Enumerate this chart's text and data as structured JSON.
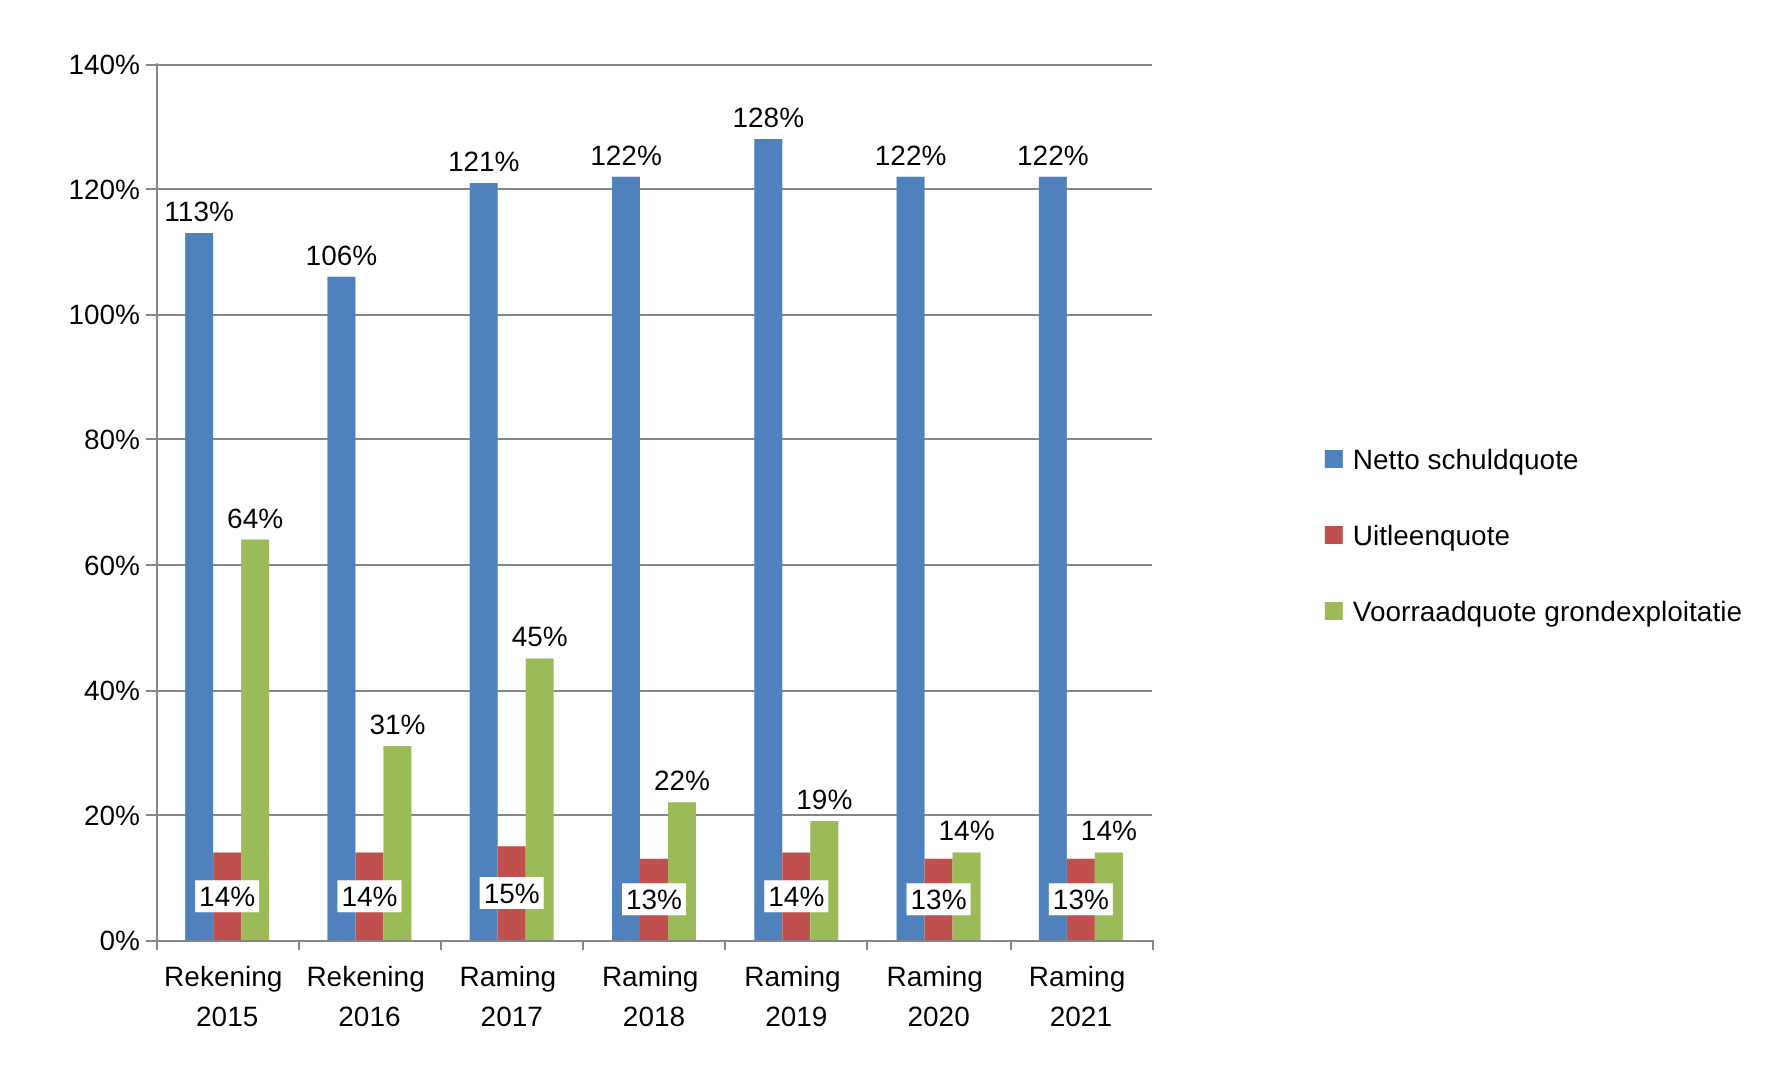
{
  "chart_data": {
    "type": "bar",
    "categories": [
      "Rekening 2015",
      "Rekening 2016",
      "Raming 2017",
      "Raming 2018",
      "Raming 2019",
      "Raming 2020",
      "Raming 2021"
    ],
    "series": [
      {
        "name": "Netto schuldquote",
        "color": "#4f81bd",
        "values": [
          113,
          106,
          121,
          122,
          128,
          122,
          122
        ],
        "value_labels": [
          "113%",
          "106%",
          "121%",
          "122%",
          "128%",
          "122%",
          "122%"
        ]
      },
      {
        "name": "Uitleenquote",
        "color": "#c0504d",
        "values": [
          14,
          14,
          15,
          13,
          14,
          13,
          13
        ],
        "value_labels": [
          "14%",
          "14%",
          "15%",
          "13%",
          "14%",
          "13%",
          "13%"
        ]
      },
      {
        "name": "Voorraadquote grondexploitatie",
        "color": "#9bbb59",
        "values": [
          64,
          31,
          45,
          22,
          19,
          14,
          14
        ],
        "value_labels": [
          "64%",
          "31%",
          "45%",
          "22%",
          "19%",
          "14%",
          "14%"
        ]
      }
    ],
    "ylim": [
      0,
      140
    ],
    "yticks": [
      {
        "value": 0,
        "label": "0%"
      },
      {
        "value": 20,
        "label": "20%"
      },
      {
        "value": 40,
        "label": "40%"
      },
      {
        "value": 60,
        "label": "60%"
      },
      {
        "value": 80,
        "label": "80%"
      },
      {
        "value": 100,
        "label": "100%"
      },
      {
        "value": 120,
        "label": "120%"
      },
      {
        "value": 140,
        "label": "140%"
      }
    ],
    "grid": "y",
    "legend": "right"
  }
}
